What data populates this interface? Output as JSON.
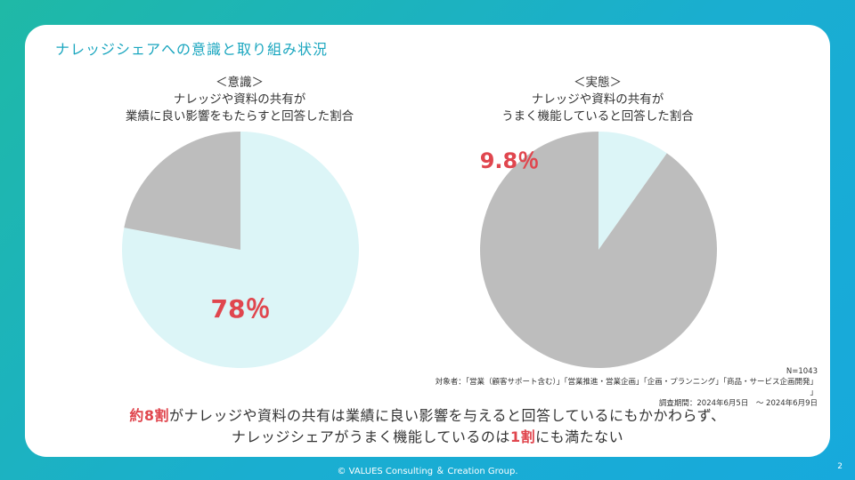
{
  "slide_title": "ナレッジシェアへの意識と取り組み状況",
  "chart_data": [
    {
      "type": "pie",
      "title_lines": [
        "＜意識＞",
        "ナレッジや資料の共有が",
        "業績に良い影響をもたらすと回答した割合"
      ],
      "slices": [
        {
          "value": 78,
          "color": "#dcf5f7"
        },
        {
          "value": 22,
          "color": "#bdbdbd"
        }
      ],
      "data_label": "78％",
      "label_color": "#e0464e"
    },
    {
      "type": "pie",
      "title_lines": [
        "＜実態＞",
        "ナレッジや資料の共有が",
        "うまく機能していると回答した割合"
      ],
      "slices": [
        {
          "value": 9.8,
          "color": "#dcf5f7"
        },
        {
          "value": 90.2,
          "color": "#bdbdbd"
        }
      ],
      "data_label": "9.8％",
      "label_color": "#e0464e"
    }
  ],
  "notes": {
    "n": "N=1043",
    "target": "対象者：「営業（顧客サポート含む）」「営業推進・営業企画」「企画・プランニング」「商品・サービス企画開発」",
    "bracket": "」",
    "period": "調査期間：2024年6月5日　～ 2024年6月9日"
  },
  "summary": {
    "l1_a": "約8割",
    "l1_b": "がナレッジや資料の共有は業績に良い影響を与えると回答しているにもかかわらず、",
    "l2_a": "ナレッジシェアがうまく機能しているのは",
    "l2_b": "1割",
    "l2_c": "にも満たない"
  },
  "footer": "© VALUES Consulting ＆ Creation Group.",
  "page_number": "2"
}
